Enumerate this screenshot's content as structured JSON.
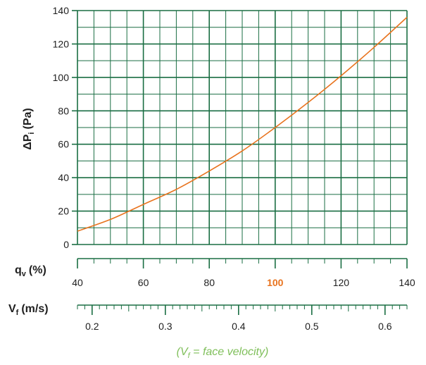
{
  "colors": {
    "grid": "#1a6e43",
    "curve": "#e8731e",
    "text": "#1e1e1e",
    "highlight": "#e8731e",
    "note": "#7fbf5a"
  },
  "chart_data": {
    "type": "line",
    "ylabel_main": "ΔP",
    "ylabel_sub": "i",
    "ylabel_unit": "(Pa)",
    "ylim": [
      0,
      140
    ],
    "yticks": [
      "0",
      "20",
      "40",
      "60",
      "80",
      "100",
      "120",
      "140"
    ],
    "xlim": [
      40,
      140
    ],
    "x_axis_qv": {
      "label_main": "q",
      "label_sub": "v",
      "label_unit": "(%)",
      "ticks": [
        "40",
        "60",
        "80",
        "100",
        "120",
        "140"
      ],
      "highlighted": "100"
    },
    "x_axis_vf": {
      "label_main": "V",
      "label_sub": "f",
      "label_unit": "(m/s)",
      "ticks": [
        "0.2",
        "0.3",
        "0.4",
        "0.5",
        "0.6"
      ],
      "range": [
        0.18,
        0.63
      ]
    },
    "note": {
      "open": "(V",
      "sub": "f",
      "rest": " = face velocity)"
    },
    "series": [
      {
        "x": [
          40,
          50,
          60,
          70,
          80,
          90,
          100,
          110,
          120,
          130,
          140
        ],
        "y": [
          8,
          15,
          24,
          33,
          44,
          56,
          70,
          85,
          101,
          118,
          136
        ]
      }
    ]
  }
}
